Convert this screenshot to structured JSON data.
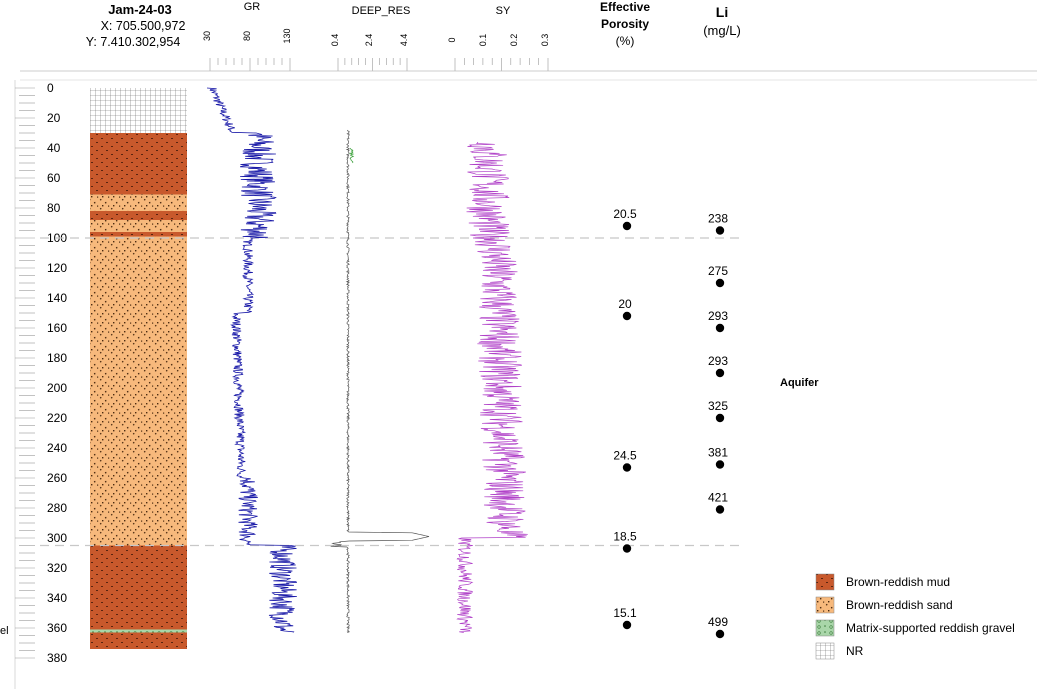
{
  "well": {
    "name": "Jam-24-03",
    "x_coord": "X: 705.500,972",
    "y_coord": "Y: 7.410.302,954"
  },
  "tracks": {
    "gr": {
      "name": "GR",
      "ticks": [
        "30",
        "80",
        "130"
      ],
      "color": "#1a1aa8"
    },
    "deep_res": {
      "name": "DEEP_RES",
      "ticks": [
        "0.4",
        "2.4",
        "4.4"
      ],
      "color": "#555555",
      "accent": "#2e9a2e"
    },
    "sy": {
      "name": "SY",
      "ticks": [
        "0",
        "0.1",
        "0.2",
        "0.3"
      ],
      "color": "#b040c8"
    }
  },
  "porosity": {
    "title_lines": [
      "Effective",
      "Porosity",
      "(%)"
    ],
    "points": [
      {
        "depth": 92,
        "label": "20.5"
      },
      {
        "depth": 152,
        "label": "20"
      },
      {
        "depth": 253,
        "label": "24.5"
      },
      {
        "depth": 307,
        "label": "18.5"
      },
      {
        "depth": 358,
        "label": "15.1"
      }
    ]
  },
  "lithium": {
    "title_lines": [
      "Li",
      "(mg/L)"
    ],
    "points": [
      {
        "depth": 95,
        "label": "238"
      },
      {
        "depth": 130,
        "label": "275"
      },
      {
        "depth": 160,
        "label": "293"
      },
      {
        "depth": 190,
        "label": "293"
      },
      {
        "depth": 220,
        "label": "325"
      },
      {
        "depth": 251,
        "label": "381"
      },
      {
        "depth": 281,
        "label": "421"
      },
      {
        "depth": 364,
        "label": "499"
      }
    ]
  },
  "depth_axis": {
    "ticks": [
      "0",
      "20",
      "40",
      "60",
      "80",
      "100",
      "120",
      "140",
      "160",
      "180",
      "200",
      "220",
      "240",
      "260",
      "280",
      "300",
      "320",
      "340",
      "360",
      "380"
    ],
    "min": 0,
    "max": 380
  },
  "aquifer": {
    "label": "Aquifer",
    "top_depth": 100,
    "bottom_depth": 305
  },
  "lithology": [
    {
      "top": 0,
      "bottom": 30,
      "type": "nr"
    },
    {
      "top": 30,
      "bottom": 71,
      "type": "mud"
    },
    {
      "top": 71,
      "bottom": 82,
      "type": "sand"
    },
    {
      "top": 82,
      "bottom": 88,
      "type": "mud"
    },
    {
      "top": 88,
      "bottom": 96,
      "type": "sand"
    },
    {
      "top": 96,
      "bottom": 99,
      "type": "mud"
    },
    {
      "top": 99,
      "bottom": 305,
      "type": "sand"
    },
    {
      "top": 305,
      "bottom": 361,
      "type": "mud"
    },
    {
      "top": 361,
      "bottom": 363,
      "type": "gravel"
    },
    {
      "top": 363,
      "bottom": 374,
      "type": "mud"
    }
  ],
  "legend": [
    {
      "type": "mud",
      "label": "Brown-reddish mud"
    },
    {
      "type": "sand",
      "label": "Brown-reddish sand"
    },
    {
      "type": "gravel",
      "label": "Matrix-supported reddish gravel"
    },
    {
      "type": "nr",
      "label": "NR"
    }
  ],
  "colors": {
    "mud": "#c8592c",
    "sand": "#f7b97c",
    "gravel": "#a9d6a9",
    "nr": "#ffffff",
    "dash": "#c8c8c8"
  },
  "left_edge_label": "el"
}
